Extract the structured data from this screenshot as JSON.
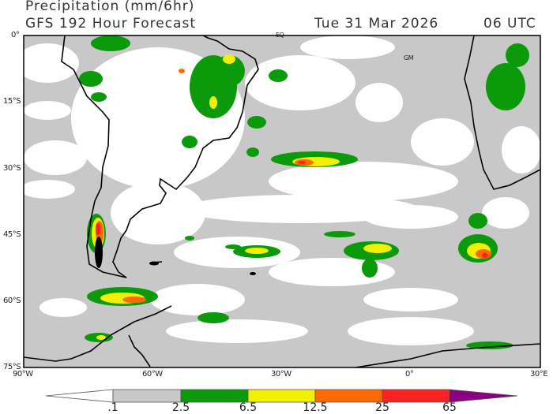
{
  "header": {
    "title": "Precipitation (mm/6hr)",
    "subtitle": "GFS 192 Hour Forecast",
    "date": "Tue 31 Mar 2026",
    "time": "06 UTC"
  },
  "map": {
    "region": "South America / South Atlantic",
    "lon_range": [
      -90,
      30
    ],
    "lat_range": [
      -75,
      0
    ],
    "lat_labels": [
      "0°",
      "15°S",
      "30°S",
      "45°S",
      "60°S",
      "75°S"
    ],
    "lon_labels": [
      "90°W",
      "60°W",
      "30°W",
      "0°",
      "30°E"
    ],
    "annotations": [
      "EQ",
      "GM"
    ]
  },
  "legend": {
    "ticks": [
      ".1",
      "2.5",
      "6.5",
      "12.5",
      "25",
      "65"
    ],
    "colors": [
      "#ffffff",
      "#c8c8c8",
      "#0a9a0a",
      "#f0f000",
      "#ff6a00",
      "#ff2020",
      "#8b0080"
    ]
  }
}
